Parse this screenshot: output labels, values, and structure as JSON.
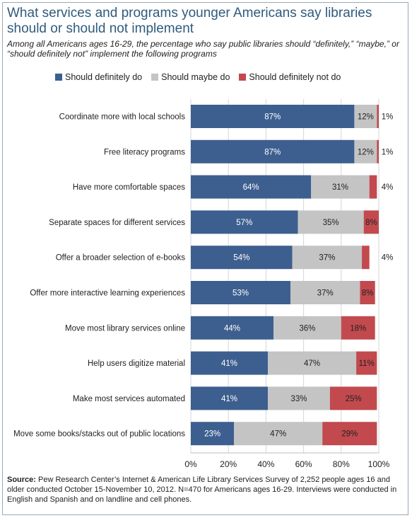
{
  "title": "What services and programs younger Americans say libraries should or should not implement",
  "subtitle": "Among all Americans ages 16-29, the percentage who say public libraries should “definitely,” “maybe,” or “should definitely not” implement the following programs",
  "source_label": "Source:",
  "source_text": "Pew Research Center’s Internet & American Life Library Services Survey of 2,252 people ages 16 and older conducted October 15-November 10, 2012. N=470 for Americans ages 16-29. Interviews were conducted in English and Spanish and on landline and cell phones.",
  "colors": {
    "definitely": "#3d5f8f",
    "maybe": "#c4c4c4",
    "not": "#c24a4e"
  },
  "chart_data": {
    "type": "bar",
    "orientation": "horizontal",
    "stacked": true,
    "title": "What services and programs younger Americans say libraries should or should not implement",
    "xlim": [
      0,
      100
    ],
    "x_ticks": [
      "0%",
      "20%",
      "40%",
      "60%",
      "80%",
      "100%"
    ],
    "x_tick_values": [
      0,
      20,
      40,
      60,
      80,
      100
    ],
    "legend_position": "top",
    "categories": [
      "Coordinate more with local schools",
      "Free literacy programs",
      "Have more comfortable spaces",
      "Separate spaces for different services",
      "Offer a broader selection of e-books",
      "Offer more interactive learning experiences",
      "Move most library services online",
      "Help users digitize material",
      "Make most services automated",
      "Move some books/stacks out of public locations"
    ],
    "series": [
      {
        "name": "Should definitely do",
        "values": [
          87,
          87,
          64,
          57,
          54,
          53,
          44,
          41,
          41,
          23
        ]
      },
      {
        "name": "Should maybe do",
        "values": [
          12,
          12,
          31,
          35,
          37,
          37,
          36,
          47,
          33,
          47
        ]
      },
      {
        "name": "Should definitely not do",
        "values": [
          1,
          1,
          4,
          8,
          4,
          8,
          18,
          11,
          25,
          29
        ]
      }
    ],
    "label_outside": [
      [
        false,
        false,
        true
      ],
      [
        false,
        false,
        true
      ],
      [
        false,
        false,
        true
      ],
      [
        false,
        false,
        false
      ],
      [
        false,
        false,
        true
      ],
      [
        false,
        false,
        false
      ],
      [
        false,
        false,
        false
      ],
      [
        false,
        false,
        false
      ],
      [
        false,
        false,
        false
      ],
      [
        false,
        false,
        false
      ]
    ]
  }
}
